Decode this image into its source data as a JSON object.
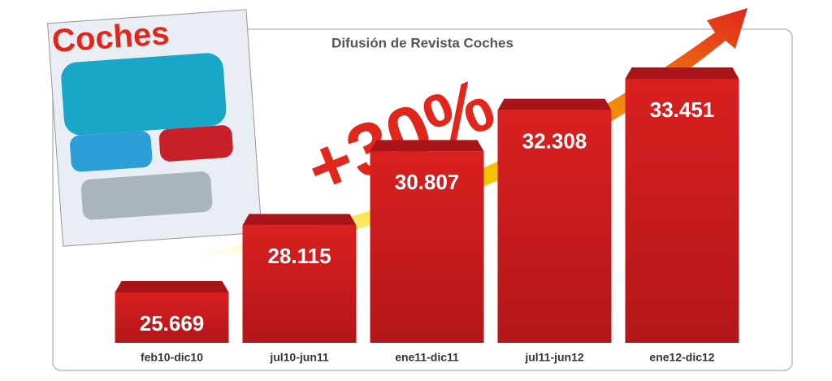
{
  "chart_data": {
    "type": "bar",
    "title": "Difusión de Revista Coches",
    "annotation": "+30%",
    "cover_title": "Coches",
    "categories": [
      "feb10-dic10",
      "jul10-jun11",
      "ene11-dic11",
      "jul11-jun12",
      "ene12-dic12"
    ],
    "values": [
      25669,
      28115,
      30807,
      32308,
      33451
    ],
    "value_labels": [
      "25.669",
      "28.115",
      "30.807",
      "32.308",
      "33.451"
    ],
    "color": "#d9201f"
  }
}
